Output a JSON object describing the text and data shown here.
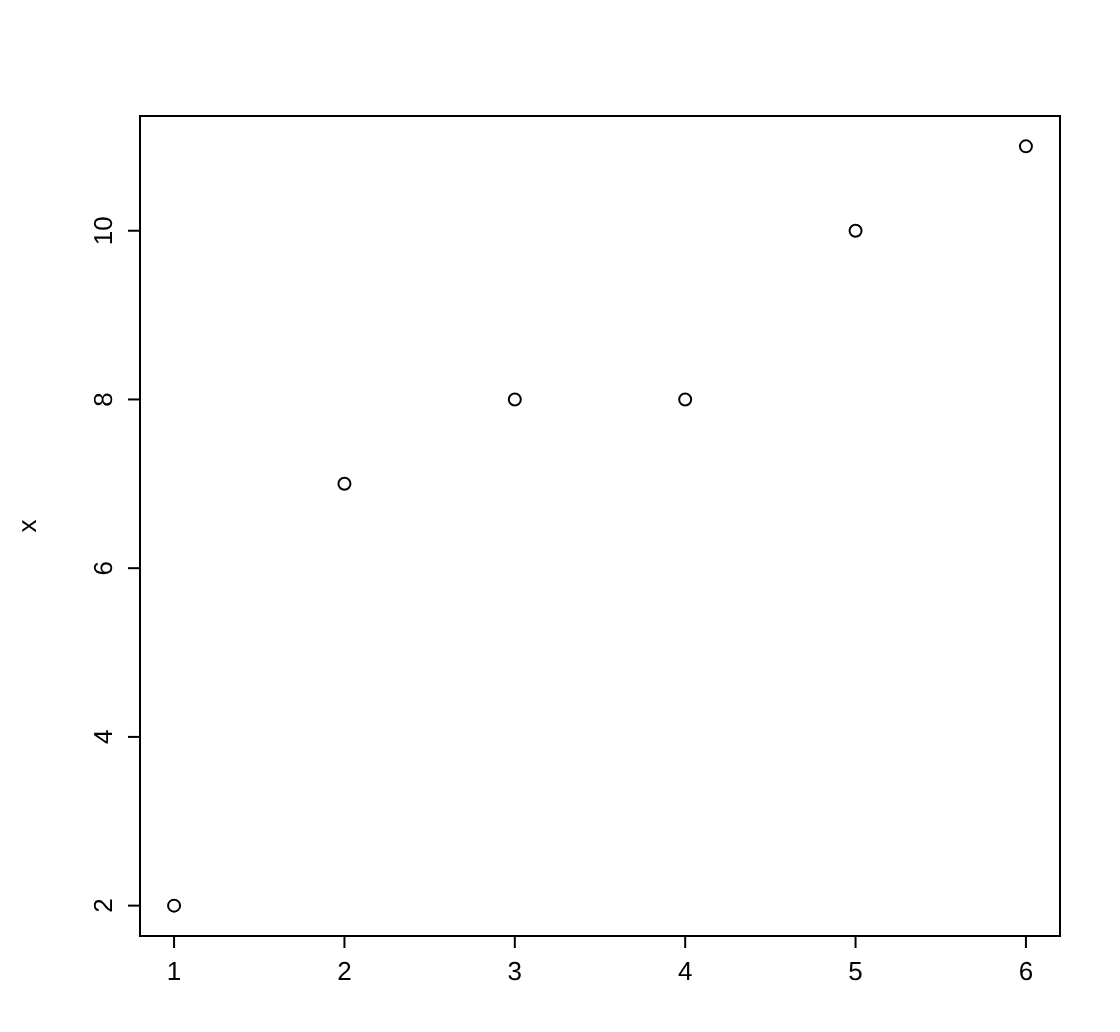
{
  "chart_data": {
    "type": "scatter",
    "ylabel": "x",
    "x": [
      1,
      2,
      3,
      4,
      5,
      6
    ],
    "series": [
      {
        "color": "#000000",
        "values": [
          2,
          7,
          8,
          8,
          10,
          11
        ]
      }
    ],
    "xlim": [
      0.8,
      6.2
    ],
    "ylim": [
      1.64,
      11.36
    ],
    "xticks": [
      1,
      2,
      3,
      4,
      5,
      6
    ],
    "yticks": [
      2,
      4,
      6,
      8,
      10
    ],
    "marker": "circle",
    "grid": false
  }
}
